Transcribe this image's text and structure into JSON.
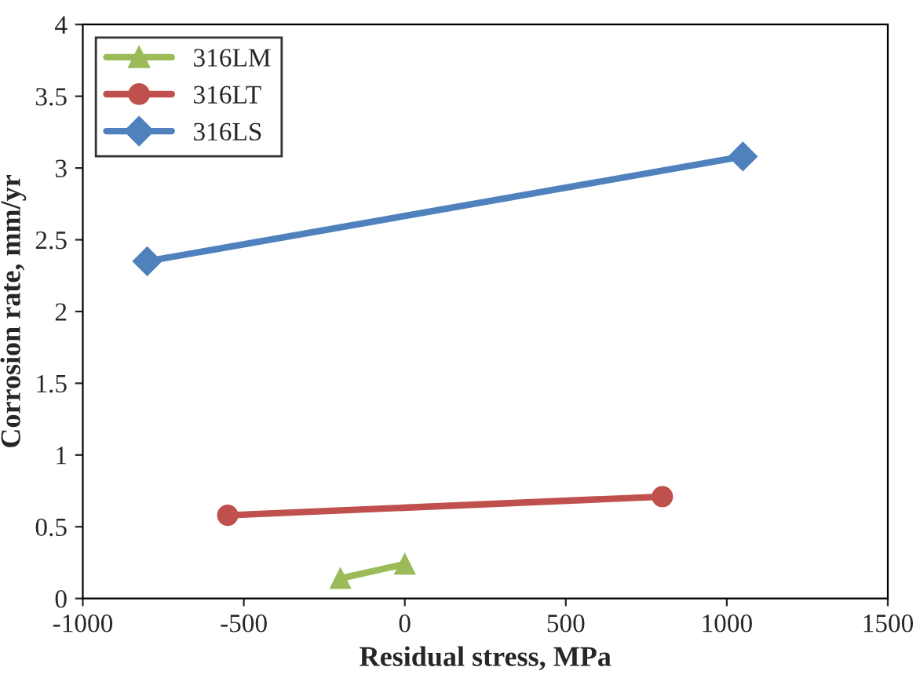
{
  "chart_data": {
    "type": "line",
    "xlabel": "Residual stress, MPa",
    "ylabel": "Corrosion rate, mm/yr",
    "xlim": [
      -1000,
      1500
    ],
    "xticks": [
      -1000,
      -500,
      0,
      500,
      1000,
      1500
    ],
    "ylim": [
      0,
      4
    ],
    "yticks": [
      0,
      0.5,
      1,
      1.5,
      2,
      2.5,
      3,
      3.5,
      4
    ],
    "grid": false,
    "legend": "top left",
    "line_style": "solid",
    "series": [
      {
        "name": "316LM",
        "color": "#9bbb59",
        "marker": "triangle",
        "x": [
          -200,
          0
        ],
        "values": [
          0.14,
          0.24
        ]
      },
      {
        "name": "316LT",
        "color": "#c0504d",
        "marker": "circle",
        "x": [
          -550,
          800
        ],
        "values": [
          0.58,
          0.71
        ]
      },
      {
        "name": "316LS",
        "color": "#4f81bd",
        "marker": "diamond",
        "x": [
          -800,
          1050
        ],
        "values": [
          2.35,
          3.08
        ]
      }
    ]
  }
}
